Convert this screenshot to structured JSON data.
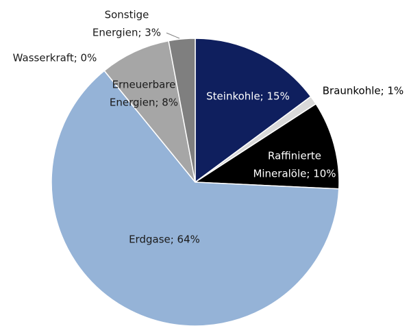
{
  "chart_data": {
    "type": "pie",
    "values": [
      15,
      1,
      10,
      64,
      0,
      8,
      3
    ],
    "value_labels": [
      [
        "Steinkohle; 15%"
      ],
      [
        "Braunkohle; 1%"
      ],
      [
        "Raffinierte",
        "Mineralöle; 10%"
      ],
      [
        "Erdgase; 64%"
      ],
      [
        "Wasserkraft; 0%"
      ],
      [
        "Erneuerbare",
        "Energien; 8%"
      ],
      [
        "Sonstige",
        "Energien; 3%"
      ]
    ],
    "colors": [
      "#0f1f5e",
      "#d9d9d9",
      "#000000",
      "#95b3d7",
      "#bfbfbf",
      "#a6a6a6",
      "#7f7f7f"
    ]
  }
}
